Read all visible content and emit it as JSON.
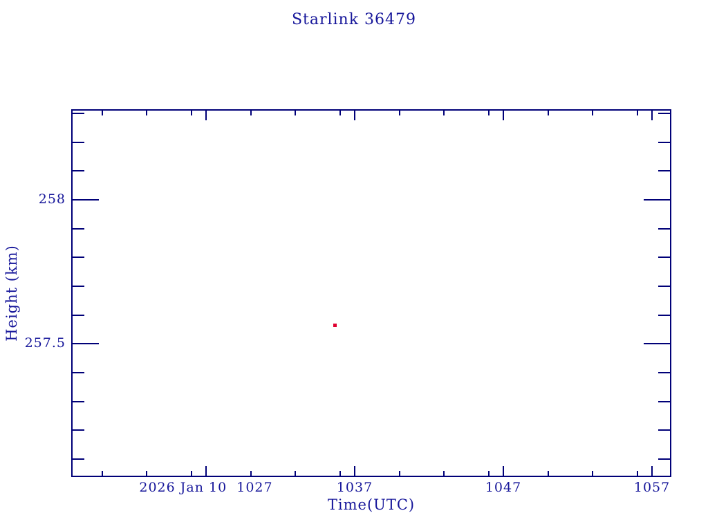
{
  "page": {
    "background": "#ffffff"
  },
  "chart_data": {
    "type": "scatter",
    "title": "Starlink 36479",
    "xlabel": "Time(UTC)",
    "ylabel": "Height (km)",
    "date_label": "2026 Jan 10",
    "grid": false,
    "legend": false,
    "colors": {
      "axis_line": "#000078",
      "text": "#16169a",
      "marker": "#e00030"
    },
    "x_axis": {
      "units": "minutes_since_midnight_UTC",
      "min": 617.93,
      "max": 658.3,
      "major_ticks": [
        {
          "value": 627,
          "label": "2026 Jan 10  1027"
        },
        {
          "value": 637,
          "label": "1037"
        },
        {
          "value": 647,
          "label": "1047"
        },
        {
          "value": 657,
          "label": "1057"
        }
      ],
      "minor_ticks": [
        620,
        623,
        626,
        630,
        633,
        636,
        640,
        643,
        646,
        650,
        653,
        656
      ]
    },
    "y_axis": {
      "units": "km",
      "min": 257.038,
      "max": 258.314,
      "major_ticks": [
        {
          "value": 258,
          "label": "258"
        },
        {
          "value": 257.5,
          "label": "257.5"
        }
      ],
      "minor_ticks": [
        258.3,
        258.2,
        258.1,
        257.9,
        257.8,
        257.7,
        257.6,
        257.4,
        257.3,
        257.2,
        257.1
      ]
    },
    "series": [
      {
        "name": "height",
        "marker": "filled-square",
        "marker_size_px": 5,
        "color": "#e00030",
        "points": [
          {
            "x": 635.67,
            "y": 257.565,
            "time_label": "1035.7",
            "height_km": 257.565
          }
        ]
      }
    ]
  }
}
